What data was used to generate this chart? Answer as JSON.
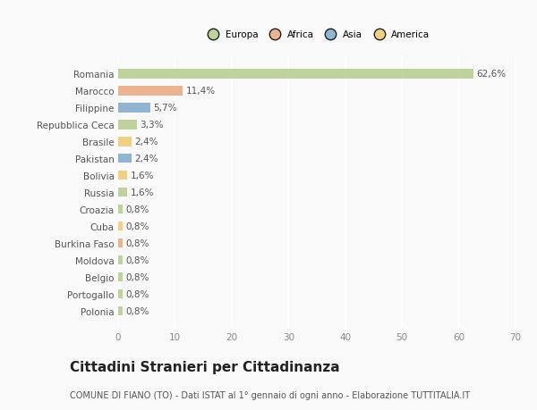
{
  "countries": [
    "Romania",
    "Marocco",
    "Filippine",
    "Repubblica Ceca",
    "Brasile",
    "Pakistan",
    "Bolivia",
    "Russia",
    "Croazia",
    "Cuba",
    "Burkina Faso",
    "Moldova",
    "Belgio",
    "Portogallo",
    "Polonia"
  ],
  "values": [
    62.6,
    11.4,
    5.7,
    3.3,
    2.4,
    2.4,
    1.6,
    1.6,
    0.8,
    0.8,
    0.8,
    0.8,
    0.8,
    0.8,
    0.8
  ],
  "labels": [
    "62,6%",
    "11,4%",
    "5,7%",
    "3,3%",
    "2,4%",
    "2,4%",
    "1,6%",
    "1,6%",
    "0,8%",
    "0,8%",
    "0,8%",
    "0,8%",
    "0,8%",
    "0,8%",
    "0,8%"
  ],
  "categories": [
    "Europa",
    "Africa",
    "Asia",
    "Europa",
    "America",
    "Asia",
    "America",
    "Europa",
    "Europa",
    "America",
    "Africa",
    "Europa",
    "Europa",
    "Europa",
    "Europa"
  ],
  "category_colors": {
    "Europa": "#b5cc8e",
    "Africa": "#e9a87e",
    "Asia": "#7fa8c9",
    "America": "#f0c96e"
  },
  "legend_labels": [
    "Europa",
    "Africa",
    "Asia",
    "America"
  ],
  "legend_colors": [
    "#b5cc8e",
    "#e9a87e",
    "#7fa8c9",
    "#f0c96e"
  ],
  "xlim": [
    0,
    70
  ],
  "xticks": [
    0,
    10,
    20,
    30,
    40,
    50,
    60,
    70
  ],
  "title": "Cittadini Stranieri per Cittadinanza",
  "subtitle": "COMUNE DI FIANO (TO) - Dati ISTAT al 1° gennaio di ogni anno - Elaborazione TUTTITALIA.IT",
  "background_color": "#f9f9f9",
  "grid_color": "#ffffff",
  "bar_height": 0.55,
  "label_fontsize": 7.5,
  "tick_fontsize": 7.5,
  "title_fontsize": 11,
  "subtitle_fontsize": 7
}
